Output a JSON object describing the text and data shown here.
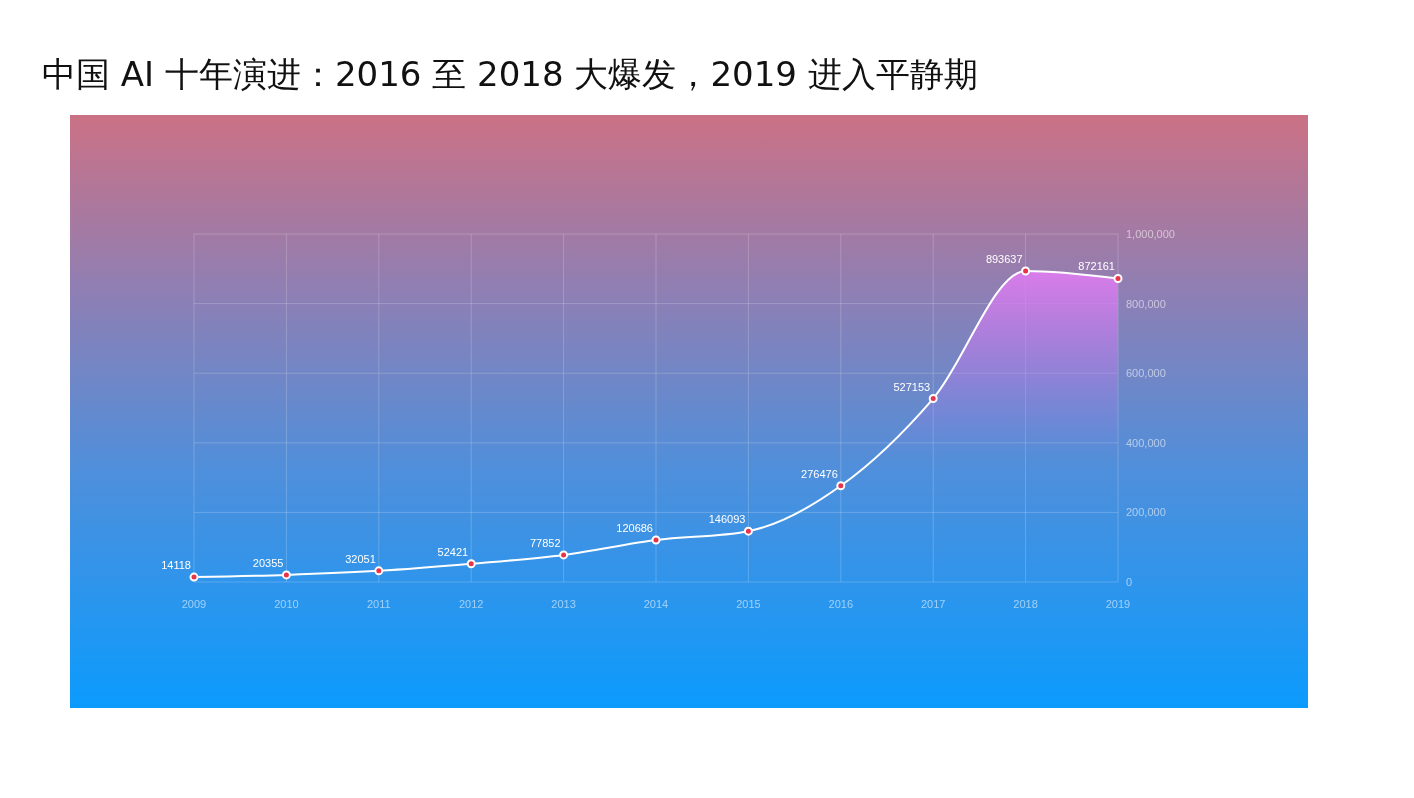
{
  "chart_data": {
    "type": "area",
    "title": "中国 AI 十年演进：2016 至 2018 大爆发，2019 进入平静期",
    "categories": [
      "2009",
      "2010",
      "2011",
      "2012",
      "2013",
      "2014",
      "2015",
      "2016",
      "2017",
      "2018",
      "2019"
    ],
    "series": [
      {
        "color": "#ffffff",
        "values": [
          14118,
          20355,
          32051,
          52421,
          77852,
          120686,
          146093,
          276476,
          527153,
          893637,
          872161
        ]
      }
    ],
    "ylim": [
      0,
      1000000
    ],
    "yticks": [
      0,
      {
        "value": 200000,
        "label": "200,000"
      },
      {
        "value": 400000,
        "label": "400,000"
      },
      {
        "value": 600000,
        "label": "600,000"
      },
      {
        "value": 800000,
        "label": "800,000"
      },
      {
        "value": 1000000,
        "label": "1,000,000"
      }
    ],
    "grid": true,
    "data_labels": true,
    "marker": "circle",
    "line_style": "solid",
    "legend": false
  }
}
